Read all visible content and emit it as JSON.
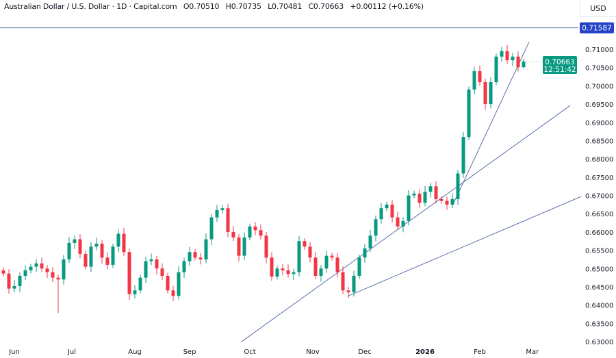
{
  "header": {
    "symbol": "Australian Dollar / U.S. Dollar · 1D · Capital.com",
    "open": "O0.70510",
    "high": "H0.70735",
    "low": "L0.70481",
    "close": "C0.70663",
    "change": "+0.00112 (+0.16%)",
    "currency": "USD"
  },
  "colors": {
    "up": "#089981",
    "down": "#f23645",
    "line": "#5b6fa8",
    "level_label": "#2443c8",
    "price_label": "#089981"
  },
  "chart_data": {
    "type": "candlestick",
    "title": "Australian Dollar / U.S. Dollar · 1D · Capital.com",
    "ylim": [
      0.6285,
      0.7205
    ],
    "y_ticks": [
      "0.63000",
      "0.63500",
      "0.64000",
      "0.64500",
      "0.65000",
      "0.65500",
      "0.66000",
      "0.66500",
      "0.67000",
      "0.67500",
      "0.68000",
      "0.68500",
      "0.69000",
      "0.69500",
      "0.70000",
      "0.70500",
      "0.71000"
    ],
    "x_labels": [
      "Jun",
      "Jul",
      "Aug",
      "Sep",
      "Oct",
      "Nov",
      "Dec",
      "2026",
      "Feb",
      "Mar"
    ],
    "first_open": 0.6495,
    "closes": [
      0.6486,
      0.6445,
      0.6452,
      0.648,
      0.6495,
      0.6505,
      0.6514,
      0.65,
      0.649,
      0.6475,
      0.647,
      0.6525,
      0.657,
      0.658,
      0.654,
      0.6505,
      0.656,
      0.6568,
      0.653,
      0.651,
      0.656,
      0.6595,
      0.6545,
      0.643,
      0.644,
      0.6475,
      0.652,
      0.6525,
      0.65,
      0.648,
      0.644,
      0.6425,
      0.649,
      0.652,
      0.6545,
      0.653,
      0.6525,
      0.658,
      0.664,
      0.666,
      0.6665,
      0.66,
      0.6585,
      0.6535,
      0.6585,
      0.6615,
      0.6605,
      0.659,
      0.653,
      0.6478,
      0.65,
      0.6495,
      0.6485,
      0.649,
      0.6575,
      0.656,
      0.653,
      0.648,
      0.65,
      0.6535,
      0.653,
      0.649,
      0.644,
      0.6435,
      0.648,
      0.653,
      0.6555,
      0.659,
      0.6635,
      0.6665,
      0.6675,
      0.664,
      0.6615,
      0.663,
      0.67,
      0.6705,
      0.668,
      0.671,
      0.6725,
      0.669,
      0.6685,
      0.6675,
      0.669,
      0.676,
      0.686,
      0.699,
      0.704,
      0.701,
      0.695,
      0.701,
      0.708,
      0.7095,
      0.707,
      0.708,
      0.7051,
      0.70663
    ],
    "last_candle": {
      "open": 0.7051,
      "high": 0.70735,
      "low": 0.70481,
      "close": 0.70663
    },
    "horizontal_level": {
      "value": 0.71587,
      "label": "0.71587"
    },
    "last_price": {
      "label": "0.70663",
      "countdown": "12:51:42"
    },
    "trendlines": [
      {
        "from": [
          43.5,
          0.63
        ],
        "to": [
          103.5,
          0.6946
        ]
      },
      {
        "from": [
          63,
          0.6425
        ],
        "to": [
          105.5,
          0.6697
        ]
      },
      {
        "from": [
          82,
          0.6672
        ],
        "to": [
          96,
          0.712
        ]
      }
    ],
    "grid": false
  }
}
